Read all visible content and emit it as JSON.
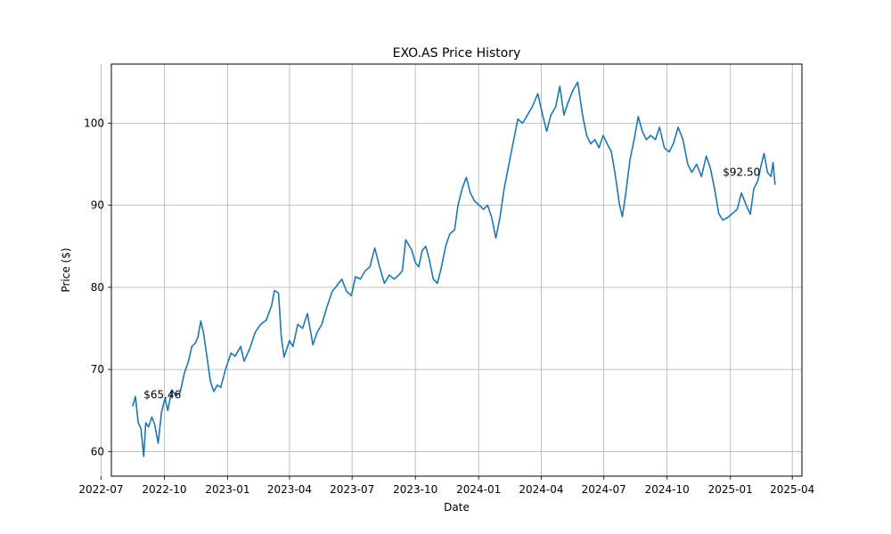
{
  "chart_data": {
    "type": "line",
    "title": "EXO.AS Price History",
    "xlabel": "Date",
    "ylabel": "Price ($)",
    "xlim": [
      "2022-07-16",
      "2025-04-15"
    ],
    "ylim": [
      57.0,
      107.2
    ],
    "grid": true,
    "line_color": "#1f77b4",
    "x_ticks": [
      "2022-07",
      "2022-10",
      "2023-01",
      "2023-04",
      "2023-07",
      "2023-10",
      "2024-01",
      "2024-04",
      "2024-07",
      "2024-10",
      "2025-01",
      "2025-04"
    ],
    "y_ticks": [
      60,
      70,
      80,
      90,
      100
    ],
    "annotations": [
      {
        "text": "$65.46",
        "x": "2022-09-01",
        "y": 66.9
      },
      {
        "text": "$92.50",
        "x": "2024-12-21",
        "y": 94.0
      }
    ],
    "series": [
      {
        "points": [
          [
            "2022-08-16",
            65.5
          ],
          [
            "2022-08-20",
            66.7
          ],
          [
            "2022-08-24",
            63.5
          ],
          [
            "2022-08-28",
            62.8
          ],
          [
            "2022-09-01",
            59.4
          ],
          [
            "2022-09-04",
            63.5
          ],
          [
            "2022-09-08",
            63.0
          ],
          [
            "2022-09-13",
            64.2
          ],
          [
            "2022-09-17",
            63.3
          ],
          [
            "2022-09-22",
            61.0
          ],
          [
            "2022-09-27",
            64.8
          ],
          [
            "2022-10-02",
            66.5
          ],
          [
            "2022-10-06",
            65.0
          ],
          [
            "2022-10-12",
            67.5
          ],
          [
            "2022-10-18",
            66.8
          ],
          [
            "2022-10-24",
            67.2
          ],
          [
            "2022-10-30",
            69.5
          ],
          [
            "2022-11-05",
            71.0
          ],
          [
            "2022-11-10",
            72.8
          ],
          [
            "2022-11-15",
            73.2
          ],
          [
            "2022-11-19",
            74.0
          ],
          [
            "2022-11-23",
            75.9
          ],
          [
            "2022-11-27",
            74.5
          ],
          [
            "2022-12-02",
            71.5
          ],
          [
            "2022-12-07",
            68.5
          ],
          [
            "2022-12-12",
            67.3
          ],
          [
            "2022-12-17",
            68.1
          ],
          [
            "2022-12-22",
            67.8
          ],
          [
            "2022-12-29",
            70.0
          ],
          [
            "2023-01-06",
            72.0
          ],
          [
            "2023-01-12",
            71.6
          ],
          [
            "2023-01-20",
            72.8
          ],
          [
            "2023-01-25",
            71.0
          ],
          [
            "2023-02-02",
            72.5
          ],
          [
            "2023-02-10",
            74.5
          ],
          [
            "2023-02-18",
            75.5
          ],
          [
            "2023-02-26",
            76.0
          ],
          [
            "2023-03-06",
            77.8
          ],
          [
            "2023-03-10",
            79.6
          ],
          [
            "2023-03-16",
            79.3
          ],
          [
            "2023-03-20",
            74.0
          ],
          [
            "2023-03-24",
            71.5
          ],
          [
            "2023-04-01",
            73.5
          ],
          [
            "2023-04-06",
            72.8
          ],
          [
            "2023-04-13",
            75.5
          ],
          [
            "2023-04-20",
            75.0
          ],
          [
            "2023-04-27",
            76.8
          ],
          [
            "2023-05-05",
            73.0
          ],
          [
            "2023-05-11",
            74.5
          ],
          [
            "2023-05-18",
            75.5
          ],
          [
            "2023-05-25",
            77.5
          ],
          [
            "2023-06-02",
            79.5
          ],
          [
            "2023-06-09",
            80.2
          ],
          [
            "2023-06-16",
            81.0
          ],
          [
            "2023-06-23",
            79.5
          ],
          [
            "2023-06-30",
            79.0
          ],
          [
            "2023-07-06",
            81.3
          ],
          [
            "2023-07-13",
            81.0
          ],
          [
            "2023-07-20",
            82.0
          ],
          [
            "2023-07-27",
            82.5
          ],
          [
            "2023-08-03",
            84.8
          ],
          [
            "2023-08-10",
            82.5
          ],
          [
            "2023-08-17",
            80.5
          ],
          [
            "2023-08-24",
            81.5
          ],
          [
            "2023-08-31",
            81.0
          ],
          [
            "2023-09-07",
            81.5
          ],
          [
            "2023-09-12",
            82.0
          ],
          [
            "2023-09-17",
            85.8
          ],
          [
            "2023-09-21",
            85.2
          ],
          [
            "2023-09-26",
            84.5
          ],
          [
            "2023-10-01",
            83.0
          ],
          [
            "2023-10-06",
            82.5
          ],
          [
            "2023-10-11",
            84.5
          ],
          [
            "2023-10-16",
            85.0
          ],
          [
            "2023-10-21",
            83.5
          ],
          [
            "2023-10-27",
            81.0
          ],
          [
            "2023-11-02",
            80.5
          ],
          [
            "2023-11-08",
            82.5
          ],
          [
            "2023-11-14",
            85.0
          ],
          [
            "2023-11-20",
            86.5
          ],
          [
            "2023-11-27",
            87.0
          ],
          [
            "2023-12-02",
            90.0
          ],
          [
            "2023-12-08",
            92.0
          ],
          [
            "2023-12-14",
            93.4
          ],
          [
            "2023-12-20",
            91.5
          ],
          [
            "2023-12-26",
            90.5
          ],
          [
            "2024-01-02",
            90.0
          ],
          [
            "2024-01-08",
            89.5
          ],
          [
            "2024-01-14",
            90.0
          ],
          [
            "2024-01-20",
            88.5
          ],
          [
            "2024-01-26",
            86.0
          ],
          [
            "2024-02-01",
            88.5
          ],
          [
            "2024-02-07",
            92.0
          ],
          [
            "2024-02-14",
            95.0
          ],
          [
            "2024-02-21",
            98.0
          ],
          [
            "2024-02-27",
            100.5
          ],
          [
            "2024-03-05",
            100.0
          ],
          [
            "2024-03-12",
            101.0
          ],
          [
            "2024-03-19",
            102.0
          ],
          [
            "2024-03-27",
            103.6
          ],
          [
            "2024-04-03",
            101.0
          ],
          [
            "2024-04-09",
            99.0
          ],
          [
            "2024-04-15",
            101.0
          ],
          [
            "2024-04-22",
            102.0
          ],
          [
            "2024-04-28",
            104.5
          ],
          [
            "2024-05-04",
            101.0
          ],
          [
            "2024-05-10",
            102.5
          ],
          [
            "2024-05-17",
            104.0
          ],
          [
            "2024-05-24",
            105.0
          ],
          [
            "2024-05-31",
            101.0
          ],
          [
            "2024-06-06",
            98.5
          ],
          [
            "2024-06-12",
            97.5
          ],
          [
            "2024-06-18",
            98.0
          ],
          [
            "2024-06-24",
            97.0
          ],
          [
            "2024-06-30",
            98.5
          ],
          [
            "2024-07-06",
            97.5
          ],
          [
            "2024-07-12",
            96.5
          ],
          [
            "2024-07-18",
            93.5
          ],
          [
            "2024-07-24",
            90.0
          ],
          [
            "2024-07-28",
            88.6
          ],
          [
            "2024-08-02",
            91.5
          ],
          [
            "2024-08-08",
            95.5
          ],
          [
            "2024-08-14",
            98.0
          ],
          [
            "2024-08-20",
            100.8
          ],
          [
            "2024-08-26",
            99.0
          ],
          [
            "2024-09-01",
            98.0
          ],
          [
            "2024-09-07",
            98.5
          ],
          [
            "2024-09-14",
            98.0
          ],
          [
            "2024-09-20",
            99.5
          ],
          [
            "2024-09-27",
            97.0
          ],
          [
            "2024-10-04",
            96.5
          ],
          [
            "2024-10-10",
            97.5
          ],
          [
            "2024-10-17",
            99.5
          ],
          [
            "2024-10-24",
            98.0
          ],
          [
            "2024-10-31",
            95.0
          ],
          [
            "2024-11-06",
            94.0
          ],
          [
            "2024-11-13",
            95.0
          ],
          [
            "2024-11-20",
            93.5
          ],
          [
            "2024-11-27",
            96.0
          ],
          [
            "2024-12-03",
            94.5
          ],
          [
            "2024-12-09",
            92.0
          ],
          [
            "2024-12-15",
            89.0
          ],
          [
            "2024-12-21",
            88.2
          ],
          [
            "2024-12-28",
            88.5
          ],
          [
            "2025-01-04",
            89.0
          ],
          [
            "2025-01-11",
            89.5
          ],
          [
            "2025-01-17",
            91.5
          ],
          [
            "2025-01-24",
            90.0
          ],
          [
            "2025-01-30",
            88.9
          ],
          [
            "2025-02-04",
            92.0
          ],
          [
            "2025-02-10",
            93.0
          ],
          [
            "2025-02-15",
            95.0
          ],
          [
            "2025-02-19",
            96.3
          ],
          [
            "2025-02-24",
            94.0
          ],
          [
            "2025-03-01",
            93.5
          ],
          [
            "2025-03-04",
            95.2
          ],
          [
            "2025-03-07",
            92.5
          ]
        ]
      }
    ]
  }
}
